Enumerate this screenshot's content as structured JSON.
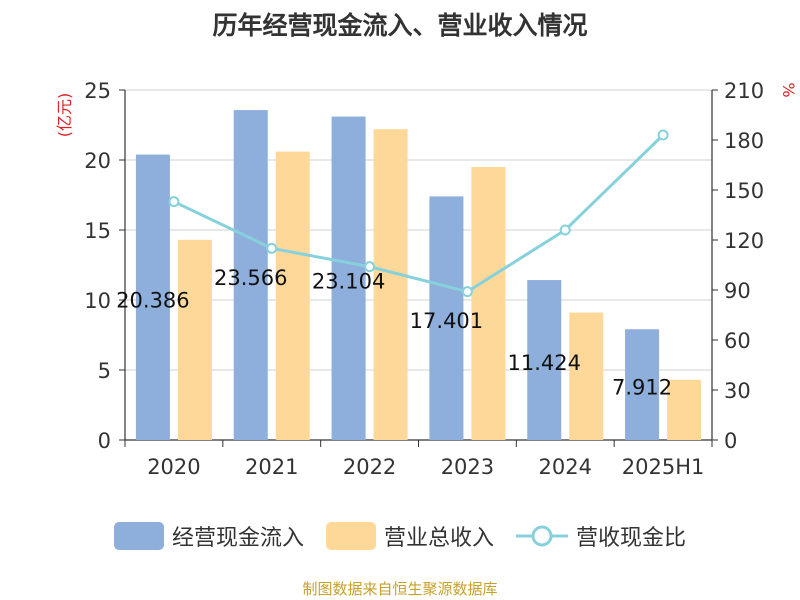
{
  "chart_data": {
    "type": "bar",
    "title": "历年经营现金流入、营业收入情况",
    "categories": [
      "2020",
      "2021",
      "2022",
      "2023",
      "2024",
      "2025H1"
    ],
    "series": [
      {
        "name": "经营现金流入",
        "type": "bar",
        "axis": "left",
        "color": "#8eaedb",
        "values": [
          20.386,
          23.566,
          23.104,
          17.401,
          11.424,
          7.912
        ]
      },
      {
        "name": "营业总收入",
        "type": "bar",
        "axis": "left",
        "color": "#fed899",
        "values": [
          14.3,
          20.6,
          22.2,
          19.5,
          9.1,
          4.3
        ]
      },
      {
        "name": "营收现金比",
        "type": "line",
        "axis": "right",
        "color": "#86d1dc",
        "values": [
          143,
          115,
          104,
          89,
          126,
          183
        ]
      }
    ],
    "data_labels": [
      "20.386",
      "23.566",
      "23.104",
      "17.401",
      "11.424",
      "7.912"
    ],
    "y_left": {
      "label": "(亿元)",
      "ylim": [
        0,
        25
      ],
      "ticks": [
        "0",
        "5",
        "10",
        "15",
        "20",
        "25"
      ]
    },
    "y_right": {
      "label": "%",
      "ylim": [
        0,
        210
      ],
      "ticks": [
        "0",
        "30",
        "60",
        "90",
        "120",
        "150",
        "180",
        "210"
      ]
    },
    "grid": true,
    "legend_position": "bottom"
  },
  "source_note": "制图数据来自恒生聚源数据库"
}
